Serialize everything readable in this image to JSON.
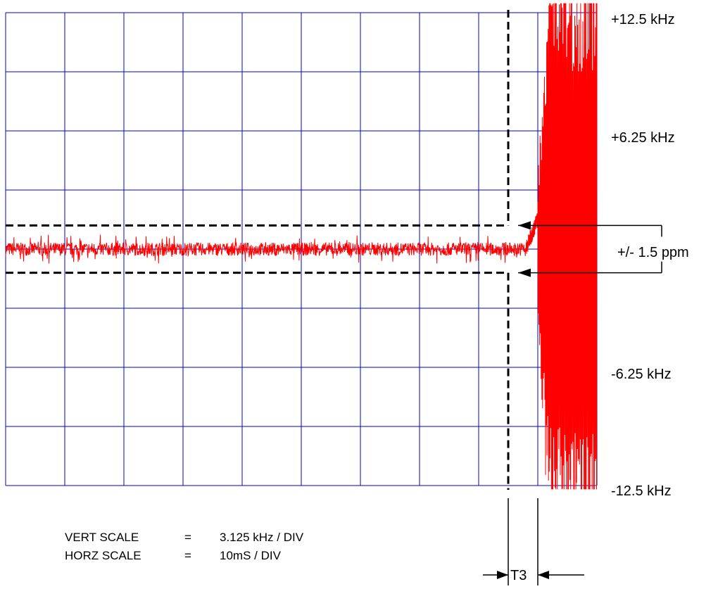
{
  "chart_data": {
    "type": "line",
    "title": "",
    "xlabel": "",
    "ylabel": "",
    "xlim_ms": [
      0,
      100
    ],
    "ylim_khz": [
      -12.5,
      12.5
    ],
    "grid": true,
    "grid_divisions": {
      "horizontal": 10,
      "vertical": 8
    },
    "y_tick_labels": [
      "+12.5 kHz",
      "+6.25 kHz",
      "-6.25 kHz",
      "-12.5 kHz"
    ],
    "y_tick_values_khz": [
      12.5,
      6.25,
      -6.25,
      -12.5
    ],
    "tolerance_label": "+/- 1.5 ppm",
    "tolerance_band_khz": [
      -1.25,
      1.25
    ],
    "t3_label": "T3",
    "t3_window_ms": [
      85,
      90
    ],
    "marker_time_ms": 85,
    "series": [
      {
        "color": "#ff0000",
        "segments": [
          {
            "x_ms": [
              0,
              88
            ],
            "behavior": "steady near 0 kHz with noise",
            "noise_amplitude_khz": 0.35
          },
          {
            "x_ms": [
              88,
              90
            ],
            "behavior": "upward drift to about +1.5 kHz",
            "max_khz": 1.6
          },
          {
            "x_ms": [
              90,
              100
            ],
            "behavior": "large oscillation exceeding full scale",
            "max_abs_khz": 12.5
          }
        ]
      }
    ],
    "scale_notes": [
      {
        "name": "VERT SCALE",
        "eq": "=",
        "value": "3.125 kHz / DIV"
      },
      {
        "name": "HORZ SCALE",
        "eq": "=",
        "value": "10mS / DIV"
      }
    ],
    "colors": {
      "grid": "#0000cc",
      "trace": "#ff0000",
      "dashed": "#000000"
    }
  }
}
